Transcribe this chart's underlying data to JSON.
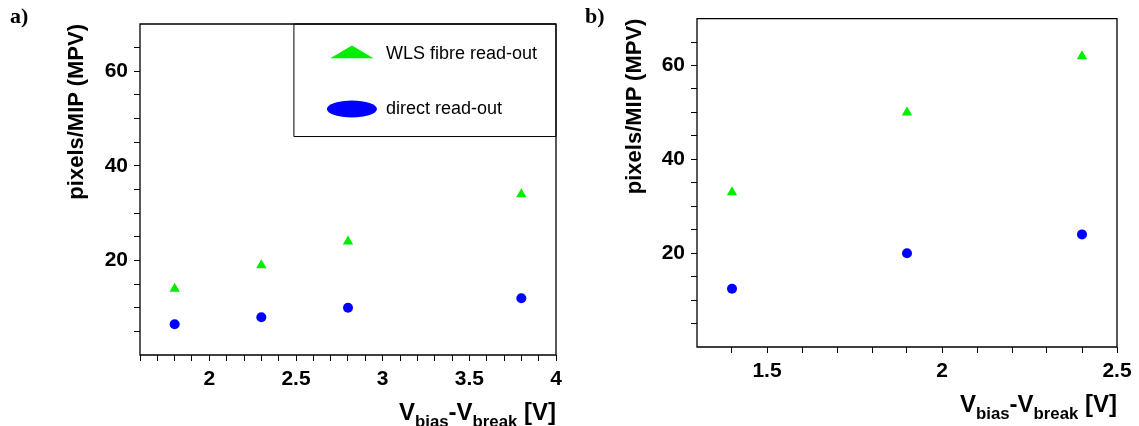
{
  "chart_data": [
    {
      "type": "scatter",
      "annotations": [
        "a)"
      ],
      "xlabel": "V$_{bias}$-V$_{break}$ [V]",
      "ylabel": "pixels/MIP (MPV)",
      "x": [
        1.8,
        2.3,
        2.8,
        3.8
      ],
      "series": [
        {
          "name": "WLS fibre read-out",
          "color": "#00ee00",
          "marker": "triangle",
          "values": [
            14,
            19,
            24,
            34
          ]
        },
        {
          "name": "direct read-out",
          "color": "#0000ff",
          "marker": "circle",
          "values": [
            6.5,
            8,
            10,
            12
          ]
        }
      ],
      "xlim": [
        1.6,
        4
      ],
      "xticks": [
        {
          "value": 1.6,
          "label": null
        },
        {
          "value": 1.7,
          "label": null
        },
        {
          "value": 1.8,
          "label": null
        },
        {
          "value": 1.9,
          "label": null
        },
        2,
        {
          "value": 2.1,
          "label": null
        },
        {
          "value": 2.2,
          "label": null
        },
        {
          "value": 2.3,
          "label": null
        },
        {
          "value": 2.4,
          "label": null
        },
        2.5,
        {
          "value": 2.6,
          "label": null
        },
        {
          "value": 2.7,
          "label": null
        },
        {
          "value": 2.8,
          "label": null
        },
        {
          "value": 2.9,
          "label": null
        },
        3,
        {
          "value": 3.1,
          "label": null
        },
        {
          "value": 3.2,
          "label": null
        },
        {
          "value": 3.3,
          "label": null
        },
        {
          "value": 3.4,
          "label": null
        },
        3.5,
        {
          "value": 3.6,
          "label": null
        },
        {
          "value": 3.7,
          "label": null
        },
        {
          "value": 3.8,
          "label": null
        },
        {
          "value": 3.9,
          "label": null
        },
        4
      ],
      "ylim": [
        0,
        70
      ],
      "yticks": [
        {
          "value": 5,
          "label": null
        },
        {
          "value": 10,
          "label": null
        },
        {
          "value": 15,
          "label": null
        },
        20,
        {
          "value": 25,
          "label": null
        },
        {
          "value": 30,
          "label": null
        },
        {
          "value": 35,
          "label": null
        },
        40,
        {
          "value": 45,
          "label": null
        },
        {
          "value": 50,
          "label": null
        },
        {
          "value": 55,
          "label": null
        },
        60,
        {
          "value": 65,
          "label": null
        }
      ],
      "grid": false,
      "legend": "top right"
    },
    {
      "type": "scatter",
      "annotations": [
        "b)"
      ],
      "xlabel": "V$_{bias}$-V$_{break}$ [V]",
      "ylabel": "pixels/MIP (MPV)",
      "x": [
        1.4,
        1.9,
        2.4
      ],
      "series": [
        {
          "color": "#00ee00",
          "marker": "triangle",
          "values": [
            33,
            50,
            62
          ]
        },
        {
          "color": "#0000ff",
          "marker": "circle",
          "values": [
            12.4,
            20,
            24
          ]
        }
      ],
      "xlim": [
        1.3,
        2.5
      ],
      "xticks": [
        {
          "value": 1.4,
          "label": null
        },
        1.5,
        {
          "value": 1.6,
          "label": null
        },
        {
          "value": 1.7,
          "label": null
        },
        {
          "value": 1.8,
          "label": null
        },
        {
          "value": 1.9,
          "label": null
        },
        2,
        {
          "value": 2.1,
          "label": null
        },
        {
          "value": 2.2,
          "label": null
        },
        {
          "value": 2.3,
          "label": null
        },
        {
          "value": 2.4,
          "label": null
        },
        2.5
      ],
      "ylim": [
        0,
        70
      ],
      "yticks": [
        {
          "value": 5,
          "label": null
        },
        {
          "value": 10,
          "label": null
        },
        {
          "value": 15,
          "label": null
        },
        20,
        {
          "value": 25,
          "label": null
        },
        {
          "value": 30,
          "label": null
        },
        {
          "value": 35,
          "label": null
        },
        40,
        {
          "value": 45,
          "label": null
        },
        {
          "value": 50,
          "label": null
        },
        {
          "value": 55,
          "label": null
        },
        60,
        {
          "value": 65,
          "label": null
        }
      ],
      "grid": false
    }
  ]
}
